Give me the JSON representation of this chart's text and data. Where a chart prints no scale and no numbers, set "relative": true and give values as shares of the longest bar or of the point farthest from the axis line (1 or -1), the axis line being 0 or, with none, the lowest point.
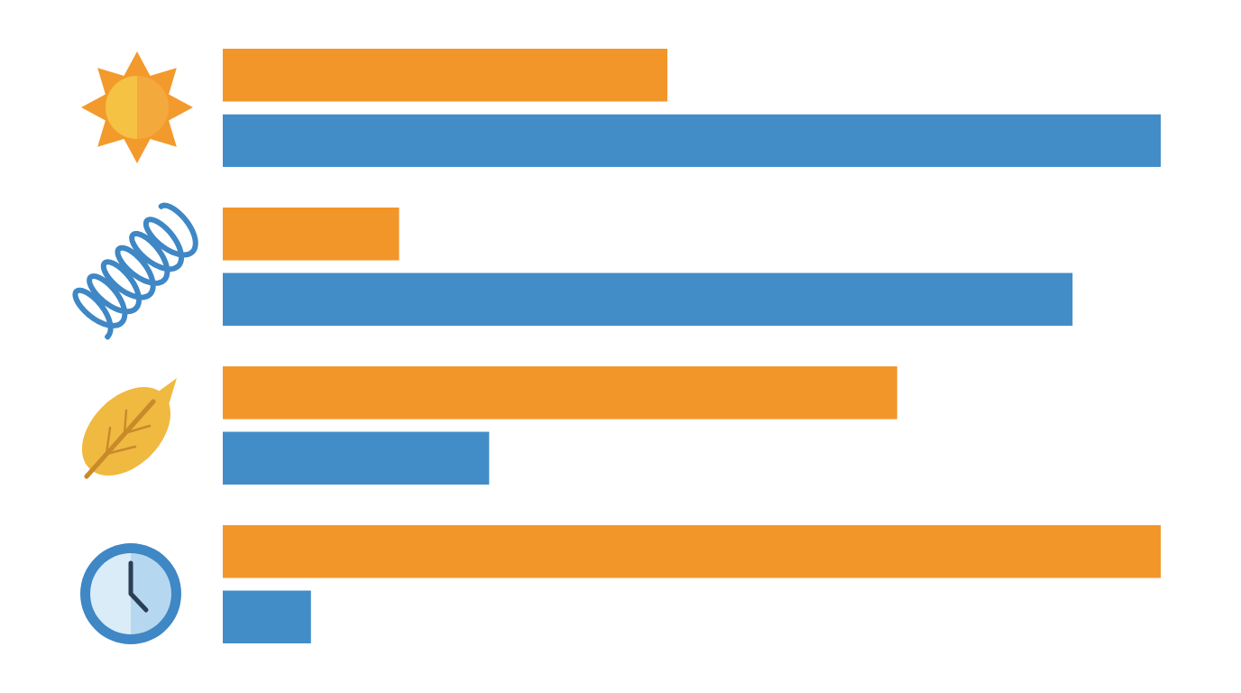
{
  "chart_data": {
    "type": "bar",
    "orientation": "horizontal",
    "relative": true,
    "categories": [
      null,
      null,
      null,
      null
    ],
    "series": [
      {
        "color": "#f39629",
        "values": [
          0.474,
          0.188,
          0.719,
          1.0
        ]
      },
      {
        "color": "#428dc8",
        "values": [
          1.0,
          0.906,
          0.284,
          0.094
        ]
      }
    ]
  }
}
